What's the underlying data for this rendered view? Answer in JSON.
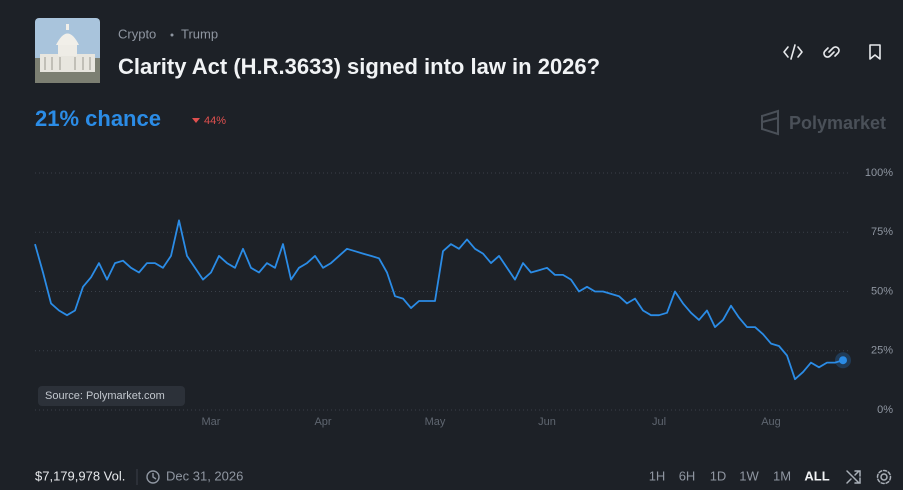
{
  "header": {
    "category": "Crypto",
    "tag": "Trump",
    "title": "Clarity Act (H.R.3633) signed into law in 2026?",
    "chance": "21% chance",
    "change": "44%",
    "brand": "Polymarket"
  },
  "chart_data": {
    "type": "line",
    "color": "#2b8ce6",
    "source": "Source: Polymarket.com",
    "values": [
      70,
      58,
      45,
      42,
      40,
      42,
      52,
      56,
      62,
      55,
      62,
      63,
      60,
      58,
      62,
      62,
      60,
      65,
      80,
      65,
      60,
      55,
      58,
      65,
      62,
      60,
      68,
      60,
      58,
      62,
      60,
      70,
      55,
      60,
      62,
      65,
      60,
      62,
      65,
      68,
      67,
      66,
      65,
      64,
      58,
      48,
      47,
      43,
      46,
      46,
      46,
      67,
      70,
      68,
      72,
      68,
      66,
      62,
      65,
      60,
      55,
      62,
      58,
      59,
      60,
      57,
      57,
      55,
      50,
      52,
      50,
      50,
      49,
      48,
      45,
      47,
      42,
      40,
      40,
      41,
      50,
      45,
      41,
      38,
      42,
      35,
      38,
      44,
      39,
      35,
      35,
      32,
      28,
      27,
      23,
      13,
      16,
      20,
      18,
      20,
      20,
      21
    ],
    "xlim": [
      0,
      101
    ],
    "xticks": [
      {
        "value": 22,
        "label": "Mar"
      },
      {
        "value": 36,
        "label": "Apr"
      },
      {
        "value": 50,
        "label": "May"
      },
      {
        "value": 64,
        "label": "Jun"
      },
      {
        "value": 78,
        "label": "Jul"
      },
      {
        "value": 92,
        "label": "Aug"
      }
    ],
    "ylim": [
      0,
      100
    ],
    "yticks": [
      {
        "value": 0,
        "label": "0%"
      },
      {
        "value": 25,
        "label": "25%"
      },
      {
        "value": 50,
        "label": "50%"
      },
      {
        "value": 75,
        "label": "75%"
      },
      {
        "value": 100,
        "label": "100%"
      }
    ],
    "grid": true
  },
  "footer": {
    "volume": "$7,179,978 Vol.",
    "end_date": "Dec 31, 2026",
    "ranges": [
      "1H",
      "6H",
      "1D",
      "1W",
      "1M",
      "ALL"
    ]
  }
}
